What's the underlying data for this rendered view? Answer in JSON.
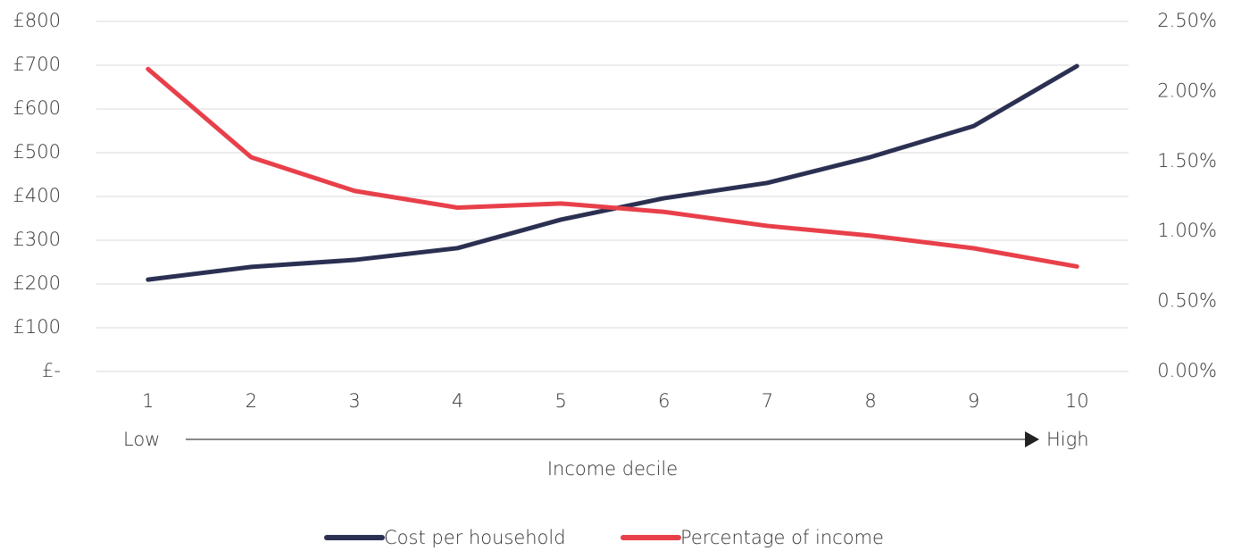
{
  "chart_data": {
    "type": "line",
    "categories": [
      "1",
      "2",
      "3",
      "4",
      "5",
      "6",
      "7",
      "8",
      "9",
      "10"
    ],
    "series": [
      {
        "name": "Cost per household",
        "color": "#2b3052",
        "values": [
          210,
          239,
          255,
          282,
          347,
          396,
          431,
          490,
          561,
          698
        ]
      },
      {
        "name": "Percentage of income",
        "color": "#e8404a",
        "axis": "y2",
        "values": [
          2.16,
          1.53,
          1.29,
          1.17,
          1.2,
          1.14,
          1.04,
          0.97,
          0.88,
          0.75
        ]
      }
    ],
    "ylim": [
      0,
      800
    ],
    "yticks": [
      {
        "value": 0,
        "label": "£-"
      },
      {
        "value": 100,
        "label": "£100"
      },
      {
        "value": 200,
        "label": "£200"
      },
      {
        "value": 300,
        "label": "£300"
      },
      {
        "value": 400,
        "label": "£400"
      },
      {
        "value": 500,
        "label": "£500"
      },
      {
        "value": 600,
        "label": "£600"
      },
      {
        "value": 700,
        "label": "£700"
      },
      {
        "value": 800,
        "label": "£800"
      }
    ],
    "y2lim": [
      0,
      2.5
    ],
    "y2ticks": [
      {
        "value": 0,
        "label": "0.00%"
      },
      {
        "value": 0.5,
        "label": "0.50%"
      },
      {
        "value": 1,
        "label": "1.00%"
      },
      {
        "value": 1.5,
        "label": "1.50%"
      },
      {
        "value": 2,
        "label": "2.00%"
      },
      {
        "value": 2.5,
        "label": "2.50%"
      }
    ],
    "xlabel": "Income decile",
    "annotations": [
      "Low",
      "High"
    ],
    "grid": true,
    "legend": "bottom"
  }
}
